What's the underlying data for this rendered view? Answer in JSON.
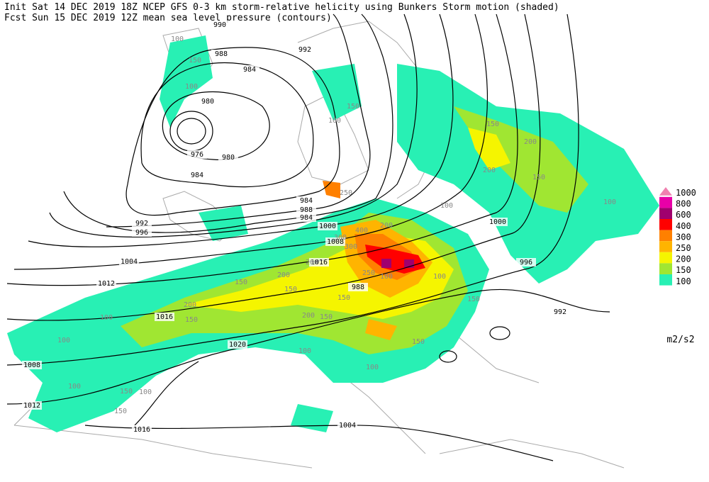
{
  "header": {
    "line1": "Init  Sat 14 DEC 2019 18Z  NCEP GFS 0-3 km storm-relative helicity using Bunkers Storm motion (shaded)",
    "line2": "Fcst Sun 15 DEC 2019 12Z  mean sea level pressure (contours)"
  },
  "legend": {
    "levels": [
      1000,
      800,
      600,
      400,
      300,
      250,
      200,
      150,
      100
    ],
    "colors": [
      "#f080b0",
      "#e800a8",
      "#a0006e",
      "#ff0000",
      "#ff8000",
      "#ffb400",
      "#f5f500",
      "#a0e632",
      "#28f0b4"
    ],
    "unit": "m2/s2"
  },
  "pressure_labels": [
    990,
    992,
    988,
    984,
    980,
    976,
    980,
    984,
    984,
    988,
    992,
    996,
    1000,
    1004,
    1008,
    1012,
    1016,
    1016,
    1020,
    1008,
    1012,
    1016,
    1004,
    1000,
    996,
    992,
    988,
    984
  ],
  "helicity_labels": [
    100,
    150,
    100,
    100,
    150,
    200,
    150,
    200,
    150,
    100,
    250,
    400,
    300,
    200,
    200,
    300,
    100,
    200,
    250,
    150,
    200,
    150,
    100,
    150,
    100,
    100,
    150,
    200,
    150,
    100,
    150,
    150,
    100,
    100,
    150,
    100,
    150,
    100
  ]
}
